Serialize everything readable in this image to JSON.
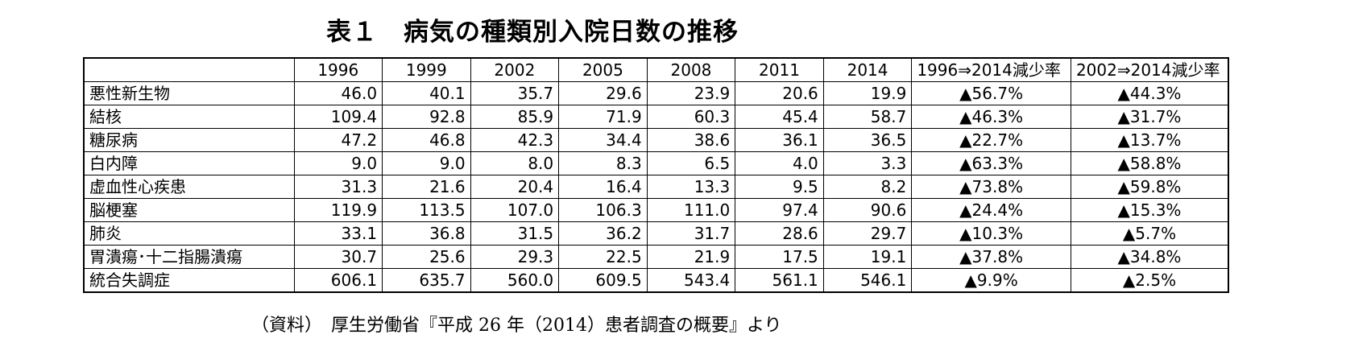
{
  "title": "表１　病気の種類別入院日数の推移",
  "source": "（資料）　厚生労働省『平成 26 年（2014）患者調査の概要』より",
  "chart_data": {
    "type": "table",
    "columns": [
      "",
      "1996",
      "1999",
      "2002",
      "2005",
      "2008",
      "2011",
      "2014",
      "1996⇒2014減少率",
      "2002⇒2014減少率"
    ],
    "rows": [
      {
        "label": "悪性新生物",
        "values": [
          "46.0",
          "40.1",
          "35.7",
          "29.6",
          "23.9",
          "20.6",
          "19.9"
        ],
        "rates": [
          "▲56.7%",
          "▲44.3%"
        ]
      },
      {
        "label": "結核",
        "values": [
          "109.4",
          "92.8",
          "85.9",
          "71.9",
          "60.3",
          "45.4",
          "58.7"
        ],
        "rates": [
          "▲46.3%",
          "▲31.7%"
        ]
      },
      {
        "label": "糖尿病",
        "values": [
          "47.2",
          "46.8",
          "42.3",
          "34.4",
          "38.6",
          "36.1",
          "36.5"
        ],
        "rates": [
          "▲22.7%",
          "▲13.7%"
        ]
      },
      {
        "label": "白内障",
        "values": [
          "9.0",
          "9.0",
          "8.0",
          "8.3",
          "6.5",
          "4.0",
          "3.3"
        ],
        "rates": [
          "▲63.3%",
          "▲58.8%"
        ]
      },
      {
        "label": "虚血性心疾患",
        "values": [
          "31.3",
          "21.6",
          "20.4",
          "16.4",
          "13.3",
          "9.5",
          "8.2"
        ],
        "rates": [
          "▲73.8%",
          "▲59.8%"
        ]
      },
      {
        "label": "脳梗塞",
        "values": [
          "119.9",
          "113.5",
          "107.0",
          "106.3",
          "111.0",
          "97.4",
          "90.6"
        ],
        "rates": [
          "▲24.4%",
          "▲15.3%"
        ]
      },
      {
        "label": "肺炎",
        "values": [
          "33.1",
          "36.8",
          "31.5",
          "36.2",
          "31.7",
          "28.6",
          "29.7"
        ],
        "rates": [
          "▲10.3%",
          "▲5.7%"
        ]
      },
      {
        "label": "胃潰瘍･十二指腸潰瘍",
        "values": [
          "30.7",
          "25.6",
          "29.3",
          "22.5",
          "21.9",
          "17.5",
          "19.1"
        ],
        "rates": [
          "▲37.8%",
          "▲34.8%"
        ]
      },
      {
        "label": "統合失調症",
        "values": [
          "606.1",
          "635.7",
          "560.0",
          "609.5",
          "543.4",
          "561.1",
          "546.1"
        ],
        "rates": [
          "▲9.9%",
          "▲2.5%"
        ]
      }
    ]
  }
}
